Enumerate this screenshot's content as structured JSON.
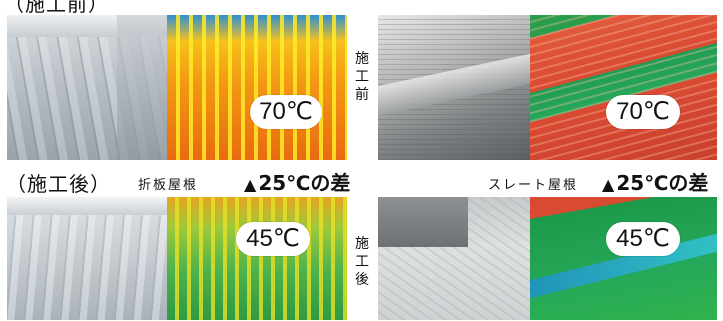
{
  "headings": {
    "before_top_cut": "（施工前）",
    "after": "（施工後）"
  },
  "roof_types": {
    "folded_plate": "折板屋根",
    "slate": "スレート屋根"
  },
  "vertical_labels": {
    "before": "施工前",
    "after": "施工後"
  },
  "temperatures": {
    "folded_before": "70℃",
    "folded_after": "45℃",
    "slate_before": "70℃",
    "slate_after": "45℃"
  },
  "difference": {
    "folded": "25℃の差",
    "slate": "25℃の差",
    "marker": "▲"
  }
}
